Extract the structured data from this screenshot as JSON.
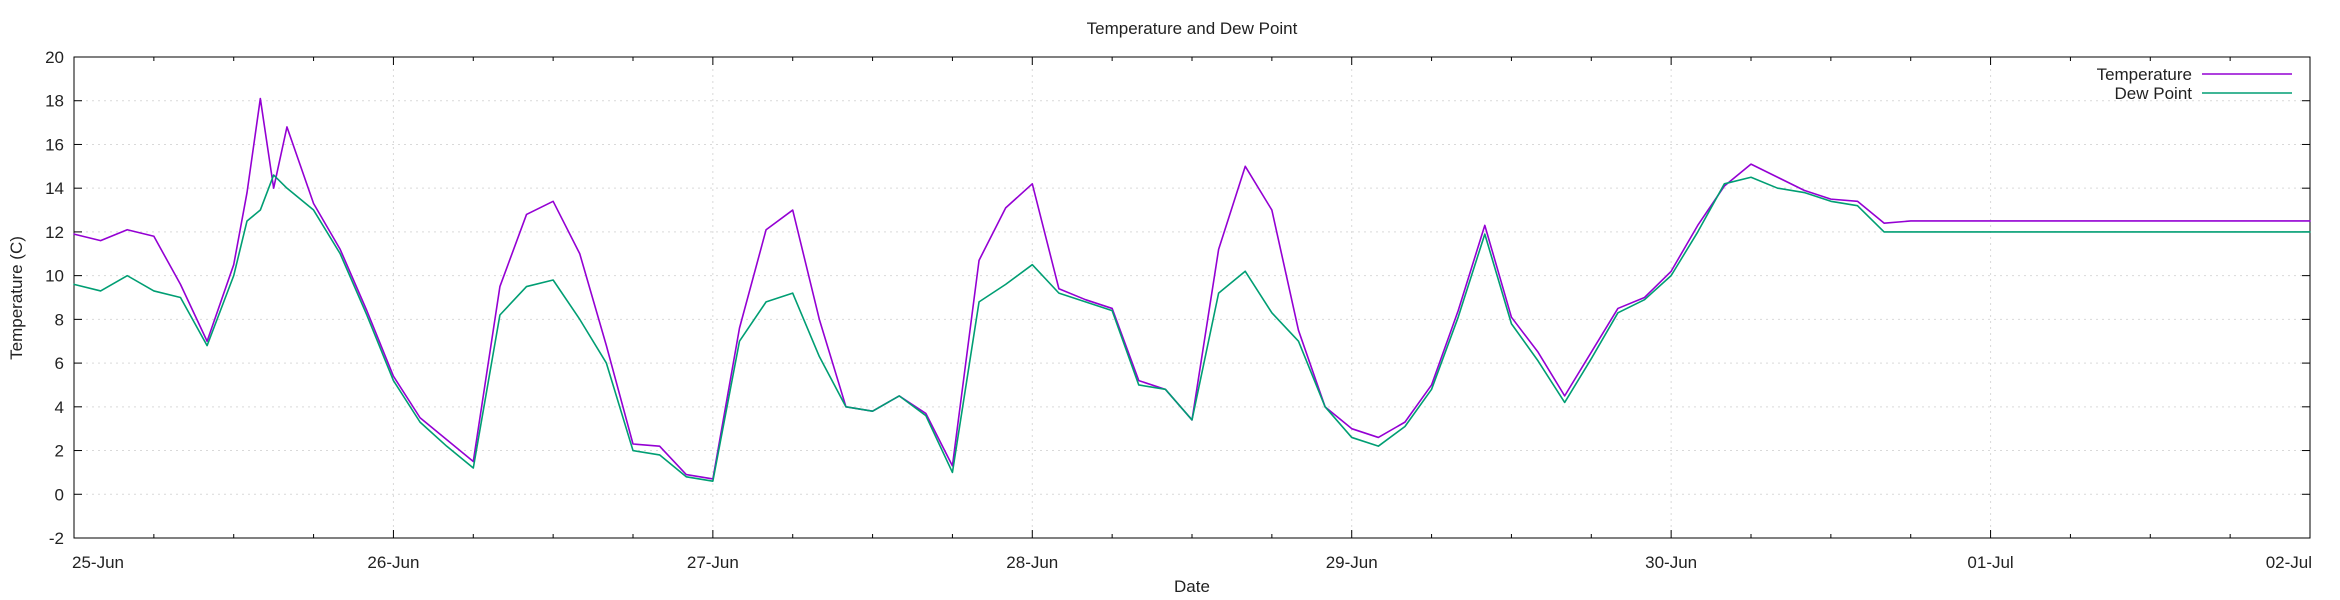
{
  "chart_data": {
    "type": "line",
    "title": "Temperature and Dew Point",
    "xlabel": "Date",
    "ylabel": "Temperature (C)",
    "ylim": [
      -2,
      20
    ],
    "yticks": [
      -2,
      0,
      2,
      4,
      6,
      8,
      10,
      12,
      14,
      16,
      18,
      20
    ],
    "xlim": [
      "2024-06-25",
      "2024-07-02"
    ],
    "x_tick_labels": [
      "25-Jun",
      "26-Jun",
      "27-Jun",
      "28-Jun",
      "29-Jun",
      "30-Jun",
      "01-Jul",
      "02-Jul"
    ],
    "grid": true,
    "legend": "top-right",
    "x_hours": [
      0,
      2,
      4,
      6,
      8,
      10,
      12,
      13,
      14,
      15,
      16,
      18,
      20,
      22,
      24,
      26,
      28,
      30,
      32,
      34,
      36,
      38,
      40,
      42,
      44,
      46,
      48,
      50,
      52,
      54,
      56,
      58,
      60,
      62,
      64,
      66,
      68,
      70,
      72,
      74,
      76,
      78,
      80,
      82,
      84,
      86,
      88,
      90,
      92,
      94,
      96,
      98,
      100,
      102,
      104,
      106,
      108,
      110,
      112,
      114,
      116,
      118,
      120,
      122,
      124,
      126,
      128,
      130,
      132,
      134,
      136,
      138,
      140,
      142,
      144,
      146,
      148,
      150,
      152,
      154,
      156,
      158,
      160,
      162,
      164,
      166,
      168
    ],
    "series": [
      {
        "name": "Temperature",
        "color": "#9400d3",
        "values": [
          11.9,
          11.6,
          12.1,
          11.8,
          9.6,
          7.0,
          10.5,
          13.8,
          18.1,
          14.0,
          16.8,
          13.3,
          11.2,
          8.4,
          5.4,
          3.5,
          2.5,
          1.5,
          9.5,
          12.8,
          13.4,
          11.0,
          6.8,
          2.3,
          2.2,
          0.9,
          0.7,
          7.6,
          12.1,
          13.0,
          8.0,
          4.0,
          3.8,
          4.5,
          3.7,
          1.3,
          10.7,
          13.1,
          14.2,
          9.4,
          8.9,
          8.5,
          5.2,
          4.8,
          3.4,
          11.2,
          15.0,
          13.0,
          7.5,
          4.0,
          3.0,
          2.6,
          3.3,
          5.0,
          8.4,
          12.3,
          8.1,
          6.5,
          4.5,
          6.5,
          8.5,
          9.0,
          10.2,
          12.3,
          14.1,
          15.1,
          14.5,
          13.9,
          13.5,
          13.4,
          12.4,
          12.5,
          12.5,
          12.5,
          12.5,
          12.5,
          12.5,
          12.5,
          12.5,
          12.5,
          12.5,
          12.5,
          12.5,
          12.5,
          12.5,
          12.5,
          12.5
        ]
      },
      {
        "name": "Dew Point",
        "color": "#009e73",
        "values": [
          9.6,
          9.3,
          10.0,
          9.3,
          9.0,
          6.8,
          10.0,
          12.5,
          13.0,
          14.6,
          14.0,
          13.0,
          11.0,
          8.2,
          5.2,
          3.3,
          2.2,
          1.2,
          8.2,
          9.5,
          9.8,
          8.0,
          6.0,
          2.0,
          1.8,
          0.8,
          0.6,
          7.0,
          8.8,
          9.2,
          6.3,
          4.0,
          3.8,
          4.5,
          3.6,
          1.0,
          8.8,
          9.6,
          10.5,
          9.2,
          8.8,
          8.4,
          5.0,
          4.8,
          3.4,
          9.2,
          10.2,
          8.3,
          7.0,
          4.0,
          2.6,
          2.2,
          3.1,
          4.8,
          8.1,
          11.9,
          7.8,
          6.1,
          4.2,
          6.2,
          8.3,
          8.9,
          10.0,
          12.0,
          14.2,
          14.5,
          14.0,
          13.8,
          13.4,
          13.2,
          12.0,
          12.0,
          12.0,
          12.0,
          12.0,
          12.0,
          12.0,
          12.0,
          12.0,
          12.0,
          12.0,
          12.0,
          12.0,
          12.0,
          12.0,
          12.0,
          12.0
        ]
      }
    ]
  }
}
